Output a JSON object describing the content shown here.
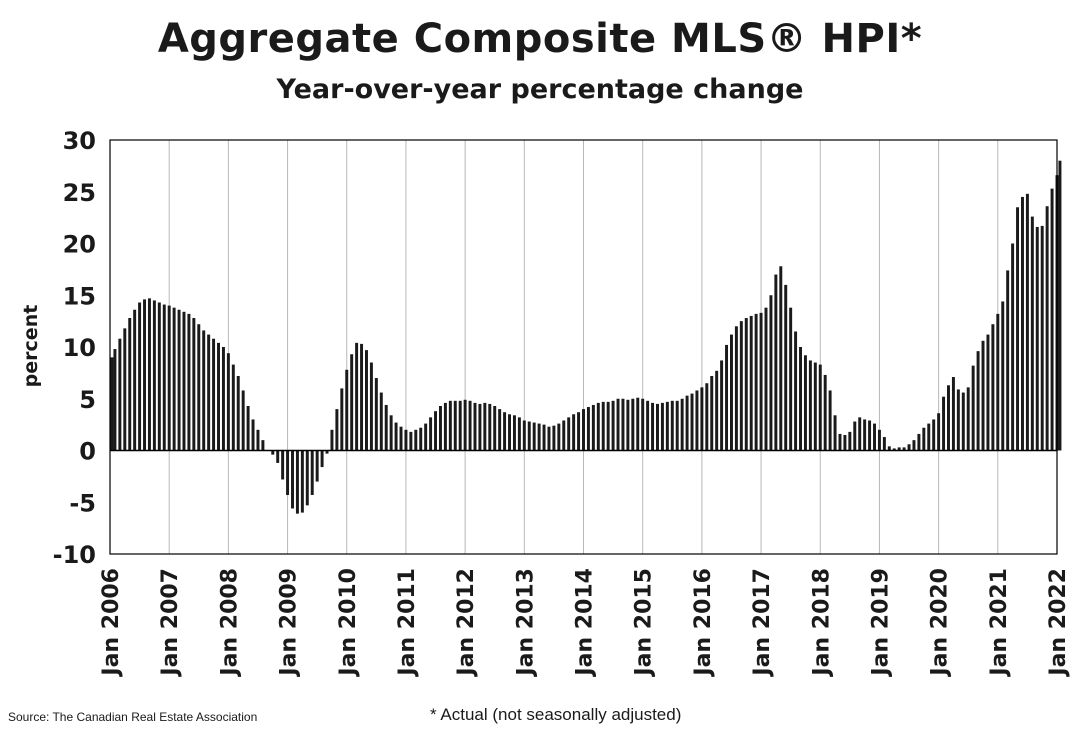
{
  "header": {
    "title": "Aggregate Composite MLS® HPI*",
    "subtitle": "Year-over-year percentage change"
  },
  "footer": {
    "source": "Source: The Canadian Real Estate Association",
    "footnote": "* Actual (not seasonally adjusted)"
  },
  "chart_data": {
    "type": "bar",
    "title": "Aggregate Composite MLS® HPI*",
    "subtitle": "Year-over-year percentage change",
    "xlabel": "",
    "ylabel": "percent",
    "ylim": [
      -10,
      30
    ],
    "yticks": [
      30,
      25,
      20,
      15,
      10,
      5,
      0,
      -5,
      -10
    ],
    "grid": "vertical at each year",
    "legend": "none",
    "bar_color": "#1a1a1a",
    "xticks": [
      "Jan 2006",
      "Jan 2007",
      "Jan 2008",
      "Jan 2009",
      "Jan 2010",
      "Jan 2011",
      "Jan 2012",
      "Jan 2013",
      "Jan 2014",
      "Jan 2015",
      "Jan 2016",
      "Jan 2017",
      "Jan 2018",
      "Jan 2019",
      "Jan 2020",
      "Jan 2021",
      "Jan 2022"
    ],
    "start": "Jan 2006",
    "end": "Jan 2022",
    "frequency": "monthly",
    "values": [
      9.0,
      9.8,
      10.8,
      11.8,
      12.8,
      13.6,
      14.3,
      14.6,
      14.7,
      14.5,
      14.3,
      14.1,
      14.0,
      13.8,
      13.6,
      13.4,
      13.2,
      12.8,
      12.2,
      11.6,
      11.2,
      10.8,
      10.4,
      10.0,
      9.4,
      8.3,
      7.2,
      5.8,
      4.3,
      3.0,
      2.0,
      1.0,
      0.0,
      -0.4,
      -1.2,
      -2.8,
      -4.3,
      -5.6,
      -6.1,
      -6.0,
      -5.3,
      -4.3,
      -3.0,
      -1.6,
      -0.3,
      2.0,
      4.0,
      6.0,
      7.8,
      9.3,
      10.4,
      10.3,
      9.7,
      8.5,
      7.0,
      5.6,
      4.4,
      3.4,
      2.7,
      2.3,
      2.0,
      1.8,
      2.0,
      2.2,
      2.6,
      3.2,
      3.8,
      4.3,
      4.6,
      4.8,
      4.8,
      4.8,
      4.9,
      4.8,
      4.6,
      4.5,
      4.6,
      4.5,
      4.3,
      4.0,
      3.7,
      3.5,
      3.4,
      3.2,
      2.9,
      2.8,
      2.7,
      2.6,
      2.5,
      2.3,
      2.4,
      2.6,
      2.9,
      3.2,
      3.5,
      3.7,
      4.0,
      4.2,
      4.4,
      4.6,
      4.7,
      4.7,
      4.8,
      5.0,
      5.0,
      4.9,
      5.0,
      5.1,
      5.0,
      4.8,
      4.6,
      4.5,
      4.6,
      4.7,
      4.8,
      4.8,
      5.0,
      5.3,
      5.5,
      5.8,
      6.1,
      6.5,
      7.2,
      7.7,
      8.7,
      10.2,
      11.2,
      12.0,
      12.5,
      12.8,
      13.0,
      13.2,
      13.3,
      13.8,
      15.0,
      17.0,
      17.8,
      16.0,
      13.8,
      11.5,
      10.0,
      9.2,
      8.7,
      8.5,
      8.3,
      7.3,
      5.8,
      3.4,
      1.6,
      1.5,
      1.8,
      2.8,
      3.2,
      3.0,
      2.9,
      2.6,
      2.0,
      1.3,
      0.4,
      0.2,
      0.3,
      0.3,
      0.6,
      1.0,
      1.6,
      2.2,
      2.6,
      3.0,
      3.6,
      5.2,
      6.3,
      7.1,
      5.9,
      5.6,
      6.1,
      8.2,
      9.6,
      10.6,
      11.2,
      12.2,
      13.2,
      14.4,
      17.4,
      20.0,
      23.5,
      24.5,
      24.8,
      22.6,
      21.6,
      21.7,
      23.6,
      25.3,
      26.6,
      28.0
    ]
  }
}
